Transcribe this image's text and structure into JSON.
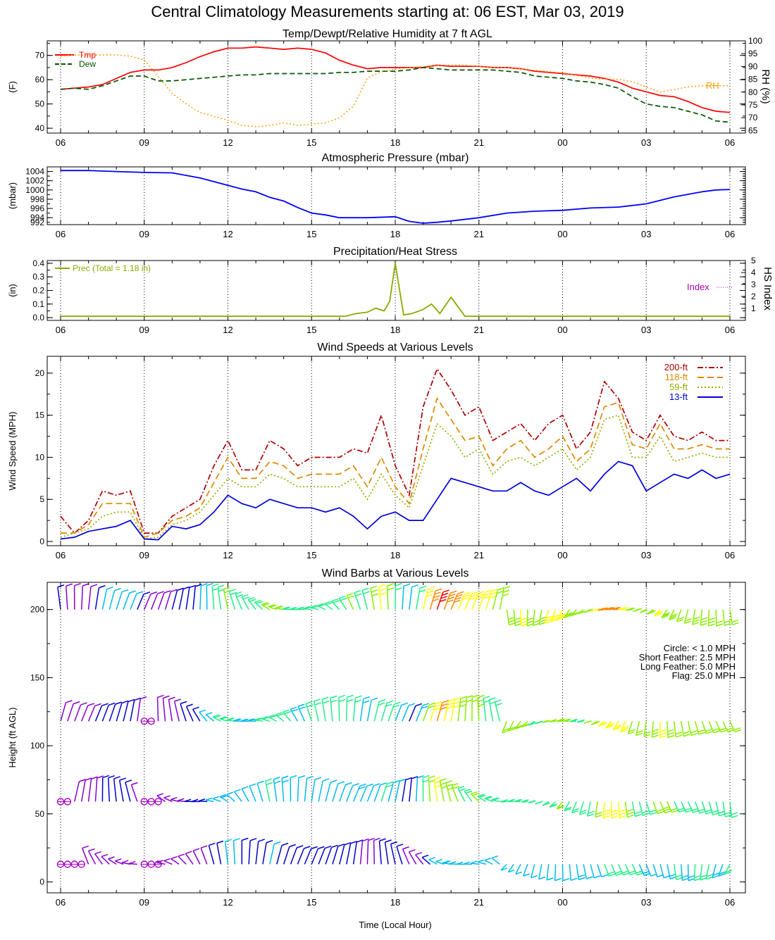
{
  "page": {
    "title": "Central Climatology Measurements starting at:  06 EST, Mar 03, 2019",
    "subtitle": "Temp/Dewpt/Relative Humidity at 7 ft AGL"
  },
  "x_axis": {
    "ticks": [
      {
        "label": "06",
        "hour": 0
      },
      {
        "label": "09",
        "hour": 3
      },
      {
        "label": "12",
        "hour": 6
      },
      {
        "label": "15",
        "hour": 9
      },
      {
        "label": "18",
        "hour": 12
      },
      {
        "label": "21",
        "hour": 15
      },
      {
        "label": "00",
        "hour": 18
      },
      {
        "label": "03",
        "hour": 21
      },
      {
        "label": "06",
        "hour": 24
      }
    ],
    "xlabel": "Time (Local Hour)"
  },
  "chart_data": [
    {
      "id": "temp",
      "type": "line",
      "title": "",
      "ylabel": "(F)",
      "ylim": [
        38,
        76
      ],
      "yticks": [
        40,
        50,
        60,
        70
      ],
      "y2label": "RH (%)",
      "y2lim": [
        64,
        100
      ],
      "y2ticks": [
        65,
        70,
        75,
        80,
        85,
        90,
        95,
        100
      ],
      "x_hours": [
        0,
        0.5,
        1,
        1.5,
        2,
        2.5,
        3,
        3.5,
        4,
        4.5,
        5,
        5.5,
        6,
        6.5,
        7,
        7.5,
        8,
        8.5,
        9,
        9.5,
        10,
        10.5,
        11,
        11.5,
        12,
        12.5,
        13,
        13.5,
        14,
        14.5,
        15,
        15.5,
        16,
        16.5,
        17,
        17.5,
        18,
        18.5,
        19,
        19.5,
        20,
        20.5,
        21,
        21.5,
        22,
        22.5,
        23,
        23.5,
        24
      ],
      "series": [
        {
          "name": "Tmp",
          "axis": "left",
          "color": "#ff0000",
          "dash": "",
          "values": [
            56,
            56.5,
            57,
            58,
            60.5,
            63,
            64,
            64,
            65,
            67,
            69.5,
            71.5,
            73,
            73,
            73.5,
            73,
            72.5,
            73,
            72.5,
            71,
            68,
            66,
            64.5,
            65,
            65,
            65,
            65,
            66,
            65.5,
            65.5,
            65.5,
            65,
            65,
            64.5,
            63.5,
            63,
            62.5,
            62,
            61.5,
            60.5,
            59,
            56.5,
            55,
            53.5,
            53,
            51,
            48.5,
            47,
            46.5
          ]
        },
        {
          "name": "Dew",
          "axis": "left",
          "color": "#005500",
          "dash": "7,4",
          "values": [
            56,
            56.5,
            56,
            57.5,
            59.5,
            61.5,
            61.5,
            59.5,
            59.5,
            60,
            60.5,
            61,
            61.5,
            62,
            62,
            62.5,
            62.5,
            62.5,
            62.5,
            62.5,
            63,
            63,
            63.5,
            63.5,
            63.5,
            64,
            65,
            64.5,
            64,
            64,
            64,
            64,
            63.5,
            63,
            61.5,
            61,
            60.5,
            59.5,
            59,
            58,
            56.5,
            53,
            50,
            49,
            48.5,
            47,
            45.5,
            43,
            42.5
          ]
        },
        {
          "name": "RH",
          "axis": "right",
          "color": "#ff9900",
          "dash": "2,3",
          "values": [
            94,
            94.5,
            94.5,
            94.5,
            94.5,
            94,
            92.5,
            86,
            79.5,
            75.5,
            72,
            70.5,
            69,
            67,
            66.5,
            67,
            68,
            67,
            67.5,
            68,
            70,
            74.5,
            85.5,
            88,
            89,
            89.5,
            90,
            90.5,
            90.5,
            90.5,
            90,
            89.5,
            89.5,
            89,
            88.5,
            88,
            87.5,
            86.5,
            85.5,
            85,
            85,
            84,
            82,
            80,
            81,
            82,
            82.5,
            82.5,
            82.5
          ]
        }
      ],
      "legend": {
        "placement": "top-left",
        "entries": [
          {
            "label": "Tmp",
            "series": 0
          },
          {
            "label": "Dew",
            "series": 1
          }
        ]
      },
      "annotation": {
        "label": "RH",
        "placement": "right"
      }
    },
    {
      "id": "pressure",
      "type": "line",
      "title": "Atmospheric Pressure (mbar)",
      "ylabel": "(mbar)",
      "ylim": [
        992.5,
        1005
      ],
      "yticks": [
        994,
        996,
        998,
        1000,
        1002,
        1004
      ],
      "extra_tick_labels": [
        "992"
      ],
      "x_hours": [
        0,
        1,
        2,
        3,
        4,
        5,
        5.5,
        6,
        6.5,
        7,
        7.5,
        8,
        8.5,
        9,
        9.5,
        10,
        11,
        12,
        12.5,
        13,
        13.5,
        14,
        15,
        16,
        17,
        18,
        19,
        20,
        21,
        22,
        23,
        23.5,
        24
      ],
      "series": [
        {
          "name": "Pressure",
          "color": "#0000ff",
          "dash": "",
          "values": [
            1004.2,
            1004.2,
            1004,
            1003.8,
            1003.7,
            1002.6,
            1001.8,
            1001,
            1000.2,
            999.6,
            998.4,
            997.6,
            996.2,
            995,
            994.6,
            994,
            994,
            994.2,
            993.2,
            992.8,
            993,
            993.3,
            994,
            995,
            995.4,
            995.6,
            996.1,
            996.3,
            997,
            998.5,
            999.6,
            1000,
            1000.1
          ]
        }
      ]
    },
    {
      "id": "precip",
      "type": "line",
      "title": "Precipitation/Heat Stress",
      "ylabel": "(in)",
      "ylim": [
        -0.02,
        0.42
      ],
      "yticks": [
        0.0,
        0.1,
        0.2,
        0.3,
        0.4
      ],
      "ytick_labels": [
        "0.0",
        "0.1",
        "0.2",
        "0.3",
        "0.4"
      ],
      "y2label": "HS Index",
      "y2lim": [
        0,
        5
      ],
      "y2ticks": [
        1,
        2,
        3,
        4,
        5
      ],
      "x_hours": [
        0,
        10.2,
        10.6,
        11,
        11.3,
        11.6,
        11.8,
        12,
        12.3,
        12.6,
        13,
        13.3,
        13.6,
        14,
        14.5,
        24
      ],
      "series": [
        {
          "name": "Prec",
          "color": "#88aa00",
          "dash": "",
          "values": [
            0.01,
            0.01,
            0.03,
            0.04,
            0.07,
            0.05,
            0.12,
            0.4,
            0.02,
            0.03,
            0.06,
            0.1,
            0.03,
            0.15,
            0.01,
            0.01
          ]
        }
      ],
      "legend_text": "Prec (Total =  1.18 in)",
      "index_label": "Index",
      "index_color": "#aa00aa"
    },
    {
      "id": "wind",
      "type": "line",
      "title": "Wind Speeds at Various Levels",
      "ylabel": "Wind Speed (MPH)",
      "ylim": [
        -0.5,
        22
      ],
      "yticks": [
        0,
        5,
        10,
        15,
        20
      ],
      "x_hours": [
        0,
        0.5,
        1,
        1.5,
        2,
        2.5,
        3,
        3.5,
        4,
        4.5,
        5,
        5.5,
        6,
        6.5,
        7,
        7.5,
        8,
        8.5,
        9,
        9.5,
        10,
        10.5,
        11,
        11.5,
        12,
        12.5,
        13,
        13.5,
        14,
        14.5,
        15,
        15.5,
        16,
        16.5,
        17,
        17.5,
        18,
        18.5,
        19,
        19.5,
        20,
        20.5,
        21,
        21.5,
        22,
        22.5,
        23,
        23.5,
        24
      ],
      "series": [
        {
          "name": "200-ft",
          "color": "#aa0000",
          "dash": "8,3,2,3",
          "values": [
            3,
            1,
            2.5,
            6,
            5.5,
            6,
            1,
            1,
            3,
            4,
            5,
            9,
            12,
            8.5,
            8.5,
            12,
            11,
            9,
            10,
            10,
            10,
            11,
            10.5,
            15,
            9,
            5.5,
            16,
            20.5,
            18,
            15,
            16,
            12,
            13,
            14,
            12,
            14,
            15,
            11,
            13,
            19,
            17,
            13,
            12,
            15,
            12.5,
            12,
            13,
            12,
            12
          ]
        },
        {
          "name": "118-ft",
          "color": "#dd8800",
          "dash": "9,5",
          "values": [
            1,
            1,
            2,
            4.5,
            4.5,
            4.5,
            0.5,
            1,
            2.5,
            3,
            4,
            7,
            10,
            7.5,
            7.5,
            9.5,
            9,
            7.5,
            8,
            8,
            8,
            9,
            6.5,
            10,
            6.5,
            4.5,
            11,
            17,
            14.5,
            12,
            12.5,
            9,
            11,
            12,
            10,
            11,
            12.5,
            9.5,
            11,
            16,
            16.5,
            11.5,
            11,
            14,
            11,
            11,
            11.5,
            11,
            11
          ]
        },
        {
          "name": "59-ft",
          "color": "#99aa00",
          "dash": "2,3",
          "values": [
            0.5,
            1,
            1.5,
            3,
            3.5,
            3.5,
            0.3,
            0.5,
            2,
            2.5,
            3.5,
            5.5,
            7.5,
            6.5,
            6.5,
            8,
            7.5,
            6.5,
            6.5,
            6.5,
            6.5,
            7.5,
            5,
            8,
            5.5,
            4,
            9,
            14,
            12.5,
            10,
            11,
            8,
            9.5,
            10,
            9,
            10,
            11,
            8.5,
            10,
            14.5,
            15,
            10,
            10,
            12.5,
            9.5,
            10,
            10.5,
            10,
            10
          ]
        },
        {
          "name": "13-ft",
          "color": "#0000dd",
          "dash": "",
          "values": [
            0.3,
            0.5,
            1.2,
            1.5,
            1.8,
            2.5,
            0.3,
            0.2,
            1.8,
            1.5,
            2,
            3.5,
            5.5,
            4.5,
            4,
            5,
            4.5,
            4,
            4,
            3.5,
            4,
            3,
            1.5,
            3,
            3.5,
            2.5,
            2.5,
            5,
            7.5,
            7,
            6.5,
            6,
            6,
            7,
            6,
            5.5,
            6.5,
            7.5,
            6,
            8,
            9.5,
            9,
            6,
            7,
            8,
            7.5,
            8.5,
            7.5,
            8
          ]
        }
      ],
      "legend": {
        "placement": "top-right",
        "entries": [
          {
            "label": "200-ft",
            "series": 0
          },
          {
            "label": "118-ft",
            "series": 1
          },
          {
            "label": "59-ft",
            "series": 2
          },
          {
            "label": "13-ft",
            "series": 3
          }
        ]
      }
    },
    {
      "id": "barbs",
      "type": "scatter",
      "title": "Wind Barbs at Various Levels",
      "ylabel": "Height (ft AGL)",
      "ylim": [
        -8,
        220
      ],
      "yticks": [
        0,
        50,
        100,
        150,
        200
      ],
      "levels": [
        200,
        118,
        59,
        13
      ],
      "level_speeds": [
        "200-ft",
        "118-ft",
        "59-ft",
        "13-ft"
      ],
      "key_lines": [
        "Circle:  < 1.0 MPH",
        "Short Feather:  2.5 MPH",
        "Long Feather:  5.0 MPH",
        "Flag: 25.0 MPH"
      ]
    }
  ]
}
